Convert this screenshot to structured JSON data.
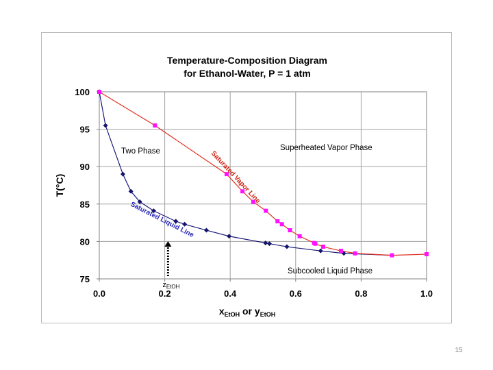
{
  "slide_number": "15",
  "chart_data": {
    "type": "line",
    "title_line1": "Temperature-Composition Diagram",
    "title_line2": "for Ethanol-Water, P = 1 atm",
    "ylabel": "T(°C)",
    "xlabel_parts": [
      "x",
      "EtOH",
      " or y",
      "EtOH"
    ],
    "xlim": [
      0,
      1
    ],
    "ylim": [
      75,
      100
    ],
    "grid": true,
    "x_ticks": [
      "0.0",
      "0.2",
      "0.4",
      "0.6",
      "0.8",
      "1.0"
    ],
    "y_ticks": [
      "75",
      "80",
      "85",
      "90",
      "95",
      "100"
    ],
    "series": [
      {
        "name": "Saturated Liquid Line",
        "color": "#1a1a7a",
        "marker": "diamond",
        "marker_color": "#14146a",
        "x": [
          0.0,
          0.019,
          0.0721,
          0.0966,
          0.1238,
          0.1661,
          0.2337,
          0.2608,
          0.3273,
          0.3965,
          0.5079,
          0.5198,
          0.5732,
          0.6763,
          0.7472,
          0.8943
        ],
        "y": [
          100.0,
          95.5,
          89.0,
          86.7,
          85.3,
          84.1,
          82.7,
          82.3,
          81.5,
          80.7,
          79.8,
          79.7,
          79.3,
          78.74,
          78.41,
          78.15
        ],
        "show_markers_count": 15
      },
      {
        "name": "Saturated Vapor Line",
        "color": "#e03020",
        "marker": "square",
        "marker_color": "#ff10ff",
        "x": [
          0.0,
          0.17,
          0.3891,
          0.4375,
          0.4704,
          0.5089,
          0.5445,
          0.558,
          0.5826,
          0.6122,
          0.6564,
          0.6599,
          0.6841,
          0.7385,
          0.7815,
          0.8943,
          1.0
        ],
        "y": [
          100.0,
          95.5,
          89.0,
          86.7,
          85.3,
          84.1,
          82.7,
          82.3,
          81.5,
          80.7,
          79.8,
          79.7,
          79.3,
          78.74,
          78.41,
          78.15,
          78.3
        ]
      }
    ],
    "annotations": {
      "two_phase": "Two Phase",
      "superheated": "Superheated Vapor Phase",
      "subcooled": "Subcooled Liquid Phase",
      "sat_vapor": "Saturated Vapor Line",
      "sat_liquid": "Saturated Liquid Line",
      "z_label": [
        "z",
        "EtOH"
      ],
      "z_value": 0.21
    }
  }
}
